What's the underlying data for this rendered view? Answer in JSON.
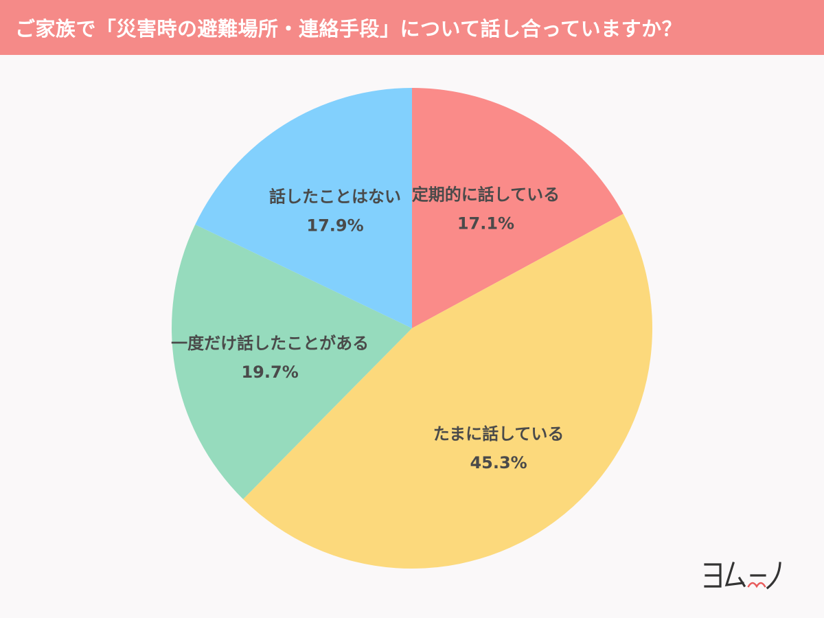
{
  "title": "ご家族で「災害時の避難場所・連絡手段」について話し合っていますか？",
  "chart_data": {
    "type": "pie",
    "start": "12 o'clock",
    "direction": "clockwise",
    "slices": [
      {
        "label": "定期的に話している",
        "value": 17.1,
        "value_label": "17.1%",
        "color": "#fa8b89"
      },
      {
        "label": "たまに話している",
        "value": 45.3,
        "value_label": "45.3%",
        "color": "#fcd97c"
      },
      {
        "label": "一度だけ話したことがある",
        "value": 19.7,
        "value_label": "19.7%",
        "color": "#96dbbd"
      },
      {
        "label": "話したことはない",
        "value": 17.9,
        "value_label": "17.9%",
        "color": "#82d0fd"
      }
    ]
  },
  "brand": {
    "logo_text": "ヨムーノ",
    "logo_color": "#333333",
    "accent_color": "#e85a5a"
  }
}
